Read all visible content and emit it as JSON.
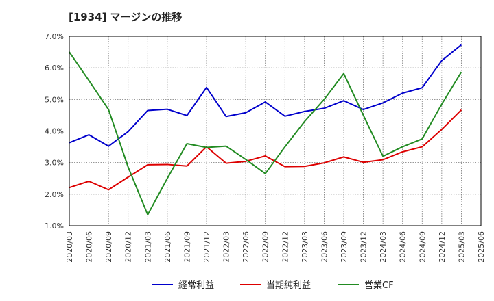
{
  "chart_data": {
    "type": "line",
    "title": "[1934]  マージンの推移",
    "xlabel": "",
    "ylabel": "",
    "ylim": [
      1.0,
      7.0
    ],
    "y_ticks": [
      "1.0%",
      "2.0%",
      "3.0%",
      "4.0%",
      "5.0%",
      "6.0%",
      "7.0%"
    ],
    "x": [
      "2020/03",
      "2020/06",
      "2020/09",
      "2020/12",
      "2021/03",
      "2021/06",
      "2021/09",
      "2021/12",
      "2022/03",
      "2022/06",
      "2022/09",
      "2022/12",
      "2023/03",
      "2023/06",
      "2023/09",
      "2023/12",
      "2024/03",
      "2024/06",
      "2024/09",
      "2024/12",
      "2025/03",
      "2025/06"
    ],
    "grid": true,
    "legend_position": "bottom",
    "series": [
      {
        "name": "経常利益",
        "color": "#0000cc",
        "values": [
          3.63,
          3.88,
          3.52,
          3.98,
          4.65,
          4.69,
          4.49,
          5.38,
          4.46,
          4.58,
          4.92,
          4.47,
          4.62,
          4.72,
          4.96,
          4.68,
          4.89,
          5.2,
          5.37,
          6.23,
          6.73,
          null
        ]
      },
      {
        "name": "当期純利益",
        "color": "#dd0000",
        "values": [
          2.21,
          2.41,
          2.14,
          2.54,
          2.93,
          2.94,
          2.89,
          3.5,
          2.98,
          3.04,
          3.21,
          2.87,
          2.88,
          2.99,
          3.18,
          3.01,
          3.09,
          3.34,
          3.5,
          4.05,
          4.67,
          null
        ]
      },
      {
        "name": "営業CF",
        "color": "#228b22",
        "values": [
          6.5,
          5.6,
          4.68,
          2.86,
          1.35,
          2.5,
          3.6,
          3.48,
          3.52,
          3.1,
          2.65,
          3.5,
          4.3,
          5.0,
          5.82,
          4.5,
          3.2,
          3.5,
          3.75,
          4.85,
          5.87,
          null
        ]
      }
    ]
  }
}
